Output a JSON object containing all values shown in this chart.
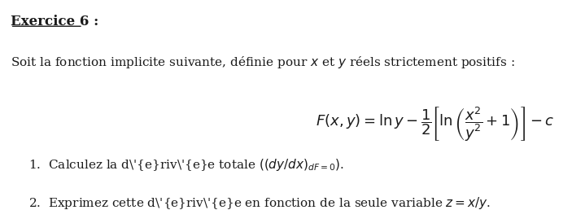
{
  "title": "Exercice 6 :",
  "line1": "Soit la fonction implicite suivante, définie pour $x$ et $y$ réels strictement positifs :",
  "formula": "$F(x, y) = \\ln y - \\dfrac{1}{2} \\left[ \\ln \\left( \\dfrac{x^2}{y^2} + 1 \\right) \\right] - c$",
  "item1": "1.  Calculez la dérivée totale $((dy/dx)_{dF=0})$.",
  "item2": "2.  Exprimez cette dérivée en fonction de la seule variable $z = x/y$.",
  "bg_color": "#ffffff",
  "text_color": "#1a1a1a",
  "font_size_title": 12,
  "font_size_body": 11,
  "font_size_formula": 13
}
